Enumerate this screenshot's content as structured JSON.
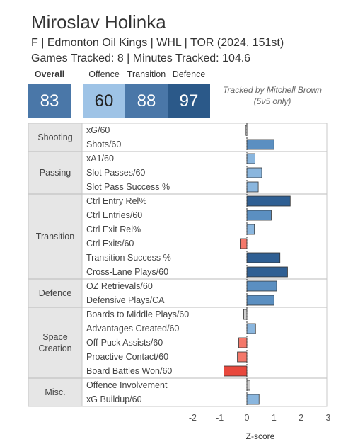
{
  "header": {
    "player_name": "Miroslav Holinka",
    "player_info": "F | Edmonton Oil Kings | WHL | TOR (2024, 151st)",
    "tracking_info": "Games Tracked: 8 | Minutes Tracked: 104.6"
  },
  "scores": {
    "overall": {
      "label": "Overall",
      "value": "83",
      "color": "#4a77a8"
    },
    "offence": {
      "label": "Offence",
      "value": "60",
      "color": "#9ec3e6"
    },
    "transition": {
      "label": "Transition",
      "value": "88",
      "color": "#4a77a8"
    },
    "defence": {
      "label": "Defence",
      "value": "97",
      "color": "#2b5989"
    }
  },
  "note": {
    "line1": "Tracked by Mitchell Brown",
    "line2": "(5v5 only)"
  },
  "chart_data": {
    "type": "bar",
    "orientation": "horizontal",
    "xlabel": "Z-score",
    "xlim": [
      -3,
      3
    ],
    "ticks": [
      -2,
      -1,
      0,
      1,
      2,
      3
    ],
    "categories": [
      {
        "name": "Shooting",
        "lines": [
          "Shooting"
        ],
        "metrics": [
          {
            "label": "xG/60",
            "value": -0.05
          },
          {
            "label": "Shots/60",
            "value": 1.0
          }
        ]
      },
      {
        "name": "Passing",
        "lines": [
          "Passing"
        ],
        "metrics": [
          {
            "label": "xA1/60",
            "value": 0.3
          },
          {
            "label": "Slot Passes/60",
            "value": 0.55
          },
          {
            "label": "Slot Pass Success %",
            "value": 0.42
          }
        ]
      },
      {
        "name": "Transition",
        "lines": [
          "Transition"
        ],
        "metrics": [
          {
            "label": "Ctrl Entry Rel%",
            "value": 1.6
          },
          {
            "label": "Ctrl Entries/60",
            "value": 0.9
          },
          {
            "label": "Ctrl Exit Rel%",
            "value": 0.28
          },
          {
            "label": "Ctrl Exits/60",
            "value": -0.25
          },
          {
            "label": "Transition Success %",
            "value": 1.22
          },
          {
            "label": "Cross-Lane Plays/60",
            "value": 1.5
          }
        ]
      },
      {
        "name": "Defence",
        "lines": [
          "Defence"
        ],
        "metrics": [
          {
            "label": "OZ Retrievals/60",
            "value": 1.1
          },
          {
            "label": "Defensive Plays/CA",
            "value": 1.0
          }
        ]
      },
      {
        "name": "Space Creation",
        "lines": [
          "Space",
          "Creation"
        ],
        "metrics": [
          {
            "label": "Boards to Middle Plays/60",
            "value": -0.12
          },
          {
            "label": "Advantages Created/60",
            "value": 0.32
          },
          {
            "label": "Off-Puck Assists/60",
            "value": -0.3
          },
          {
            "label": "Proactive Contact/60",
            "value": -0.35
          },
          {
            "label": "Board Battles Won/60",
            "value": -0.85
          }
        ]
      },
      {
        "name": "Misc.",
        "lines": [
          "Misc."
        ],
        "metrics": [
          {
            "label": "Offence Involvement",
            "value": 0.12
          },
          {
            "label": "xG Buildup/60",
            "value": 0.45
          }
        ]
      }
    ],
    "colors": {
      "strong_pos": "#2f5f93",
      "pos": "#5b8fc1",
      "weak_pos": "#8ab6de",
      "neutral": "#d0d0d0",
      "neg": "#f4786a",
      "strong_neg": "#e8483d"
    }
  }
}
